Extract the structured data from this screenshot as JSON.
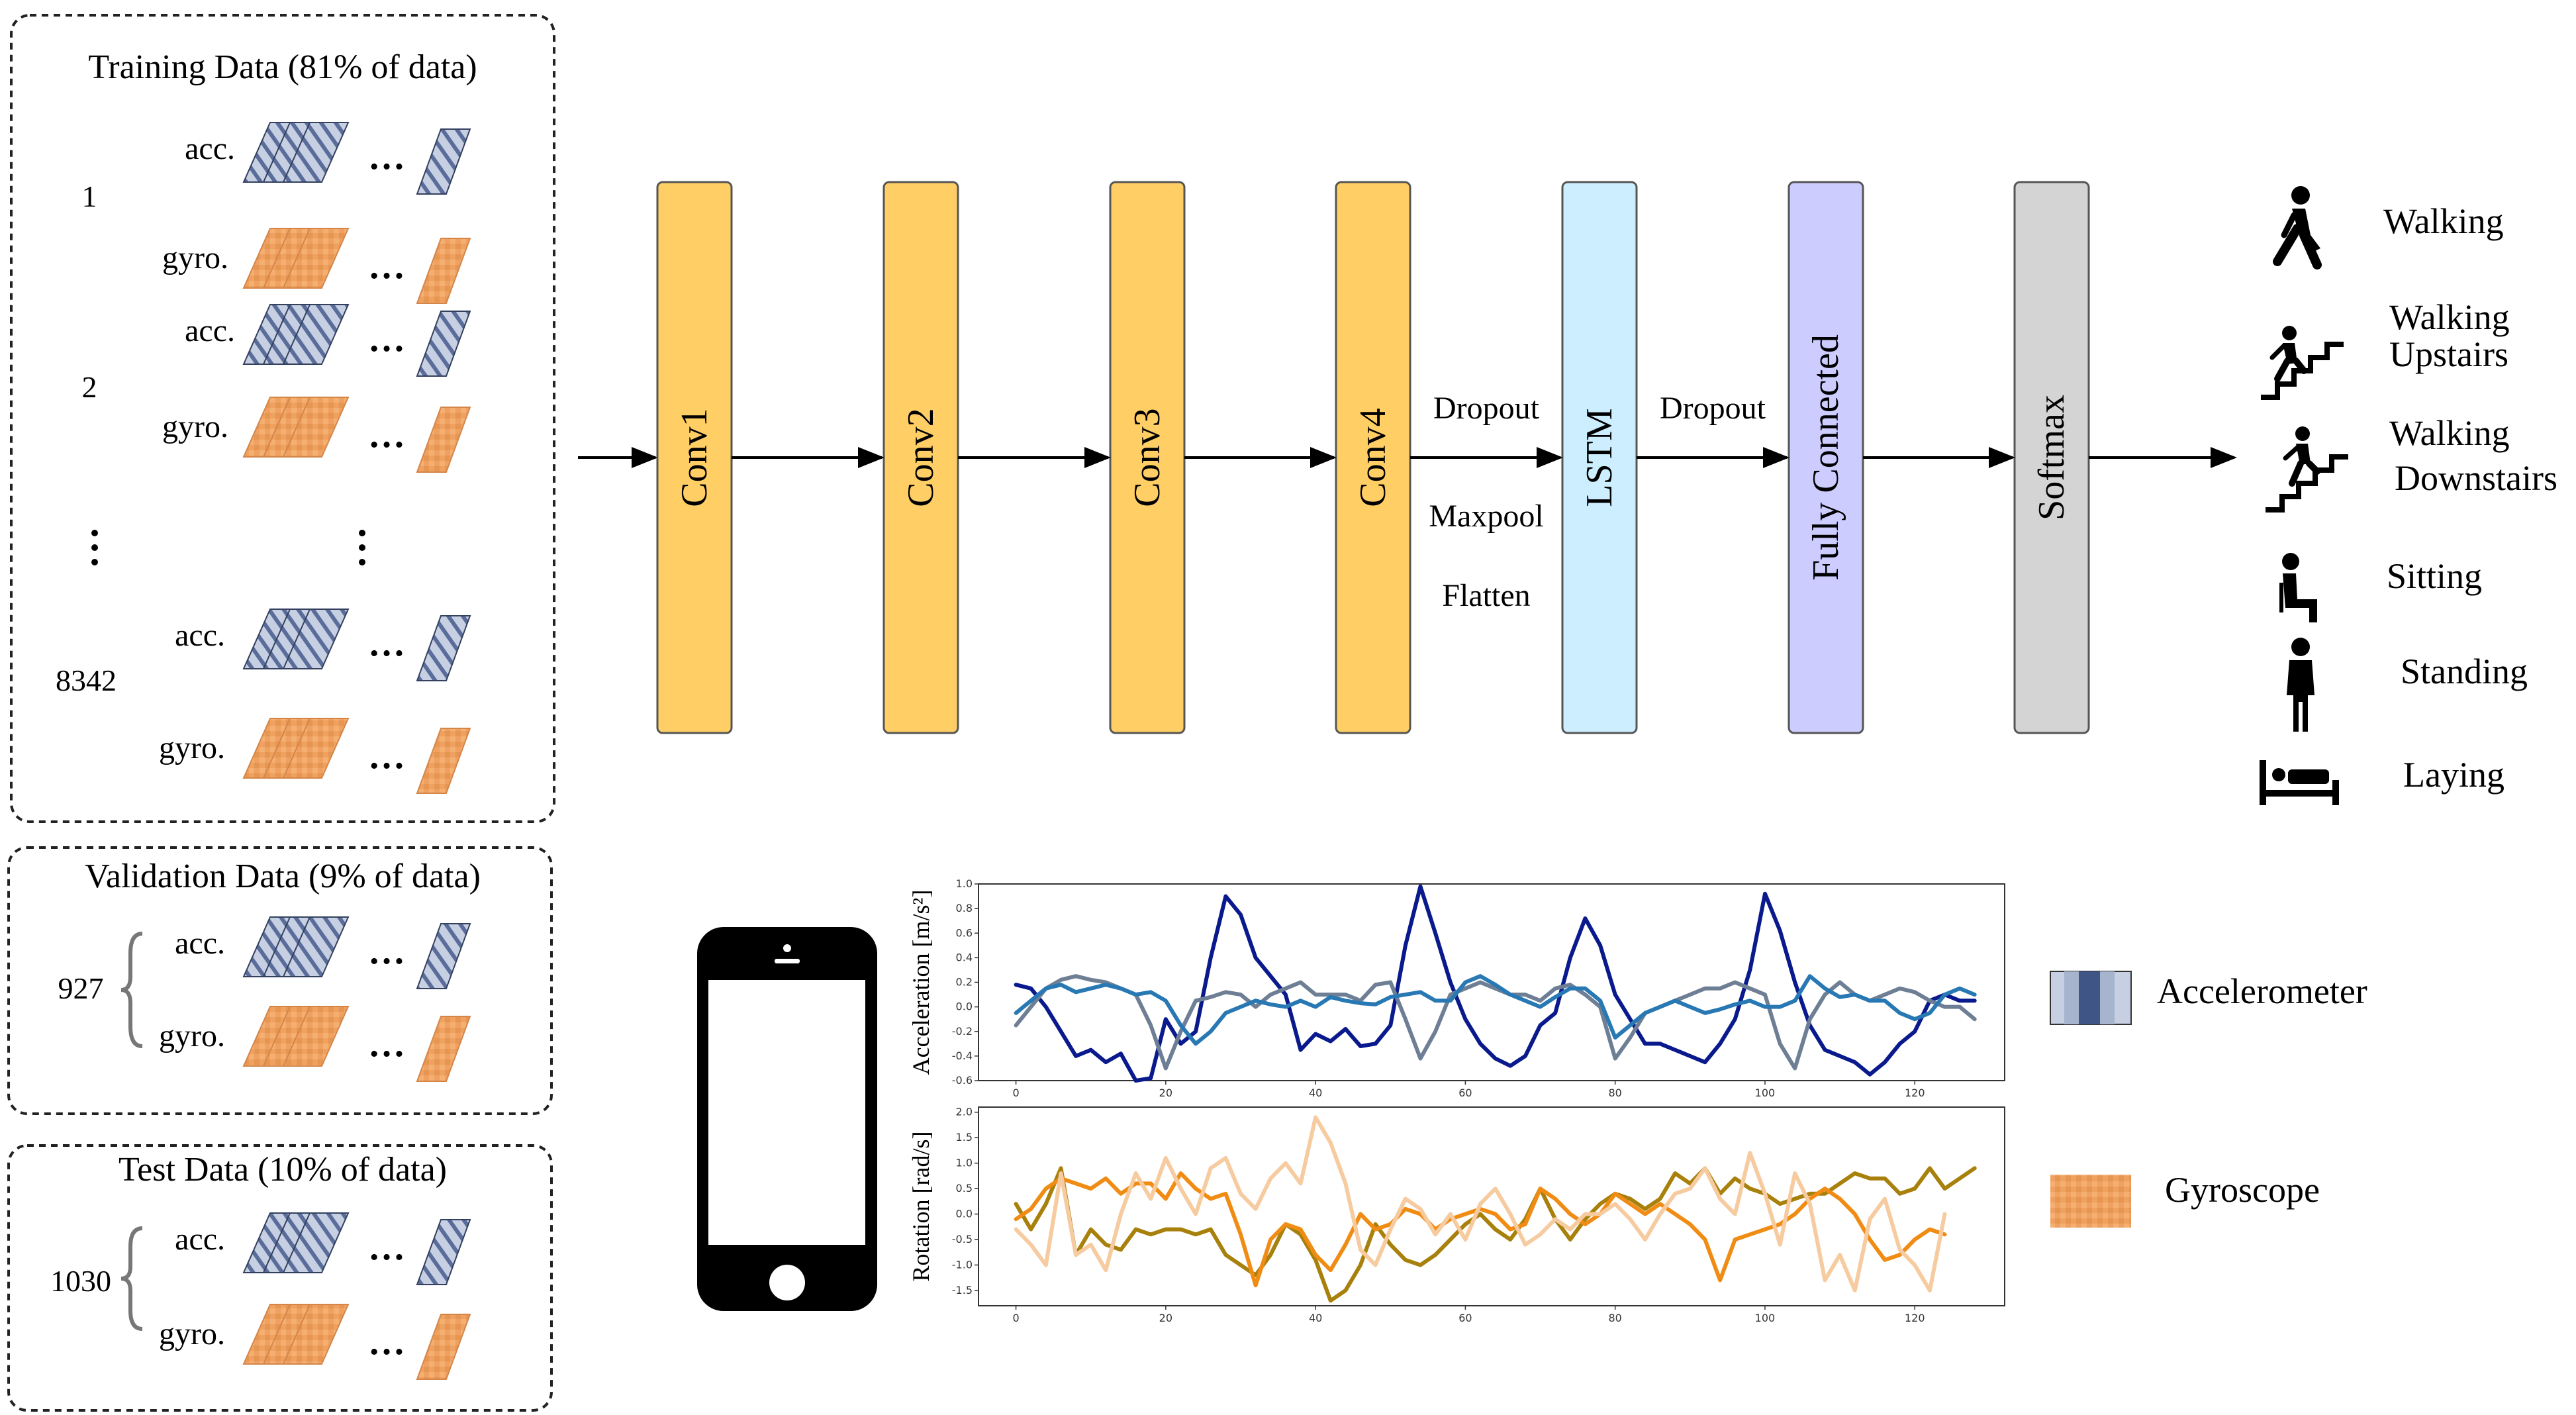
{
  "datasets": [
    {
      "title": "Training Data (81% of data)",
      "samples": [
        "1",
        "2",
        "8342"
      ]
    },
    {
      "title": "Validation Data (9% of data)",
      "samples": [
        "927"
      ]
    },
    {
      "title": "Test Data (10% of data)",
      "samples": [
        "1030"
      ]
    }
  ],
  "sensor_labels": {
    "acc": "acc.",
    "gyro": "gyro.",
    "ellipsis": "…"
  },
  "layers": [
    "Conv1",
    "Conv2",
    "Conv3",
    "Conv4",
    "LSTM",
    "Fully Connected",
    "Softmax"
  ],
  "layer_colors": {
    "conv": "#FFCF66",
    "lstm": "#CCEEFF",
    "fc": "#CCCCFF",
    "softmax": "#D4D4D4"
  },
  "notes_after_conv4": [
    "Dropout",
    "Maxpool",
    "Flatten"
  ],
  "note_after_lstm": "Dropout",
  "classes": [
    {
      "label": "Walking",
      "icon": "walking-icon"
    },
    {
      "label": "Walking Upstairs",
      "line1": "Walking",
      "line2": "Upstairs",
      "icon": "walking-upstairs-icon"
    },
    {
      "label": "Walking Downstairs",
      "line1": "Walking",
      "line2": "Downstairs",
      "icon": "walking-downstairs-icon"
    },
    {
      "label": "Sitting",
      "icon": "sitting-icon"
    },
    {
      "label": "Standing",
      "icon": "standing-icon"
    },
    {
      "label": "Laying",
      "icon": "laying-icon"
    }
  ],
  "legend": [
    {
      "label": "Accelerometer",
      "color": "#5A6D9A"
    },
    {
      "label": "Gyroscope",
      "color": "#F0A060"
    }
  ],
  "chart_data": [
    {
      "type": "line",
      "ylabel": "Acceleration [m/s²]",
      "ylim": [
        -0.6,
        1.0
      ],
      "xlim": [
        -5,
        132
      ],
      "yticks": [
        "1.0",
        "0.8",
        "0.6",
        "0.4",
        "0.2",
        "0.0",
        "-0.2",
        "-0.4",
        "-0.6"
      ],
      "xticks": [
        "0",
        "20",
        "40",
        "60",
        "80",
        "100",
        "120"
      ],
      "x_start": 0,
      "x_step": 2,
      "series": [
        {
          "color": "#0A1A8C",
          "values": [
            0.18,
            0.15,
            0.0,
            -0.2,
            -0.4,
            -0.35,
            -0.45,
            -0.38,
            -0.6,
            -0.58,
            -0.1,
            -0.3,
            -0.2,
            0.4,
            0.9,
            0.75,
            0.4,
            0.25,
            0.1,
            -0.35,
            -0.22,
            -0.28,
            -0.18,
            -0.32,
            -0.3,
            -0.15,
            0.5,
            0.98,
            0.6,
            0.2,
            -0.1,
            -0.3,
            -0.42,
            -0.48,
            -0.4,
            -0.15,
            -0.05,
            0.4,
            0.72,
            0.5,
            0.1,
            -0.1,
            -0.3,
            -0.3,
            -0.35,
            -0.4,
            -0.45,
            -0.3,
            -0.1,
            0.3,
            0.92,
            0.62,
            0.2,
            -0.15,
            -0.35,
            -0.4,
            -0.45,
            -0.55,
            -0.45,
            -0.3,
            -0.2,
            0.05,
            0.1,
            0.05,
            0.05
          ]
        },
        {
          "color": "#6E7F95",
          "values": [
            -0.15,
            0.0,
            0.15,
            0.22,
            0.25,
            0.22,
            0.2,
            0.15,
            0.1,
            -0.15,
            -0.5,
            -0.2,
            0.05,
            0.08,
            0.12,
            0.1,
            0.0,
            0.1,
            0.15,
            0.2,
            0.1,
            0.1,
            0.1,
            0.05,
            0.18,
            0.2,
            -0.1,
            -0.42,
            -0.2,
            0.1,
            0.15,
            0.2,
            0.15,
            0.1,
            0.1,
            0.05,
            0.15,
            0.18,
            0.1,
            0.0,
            -0.42,
            -0.25,
            -0.05,
            0.0,
            0.05,
            0.1,
            0.15,
            0.15,
            0.2,
            0.15,
            0.1,
            -0.3,
            -0.5,
            -0.1,
            0.1,
            0.2,
            0.1,
            0.05,
            0.1,
            0.15,
            0.12,
            0.05,
            0.0,
            0.0,
            -0.1
          ]
        },
        {
          "color": "#2878B4",
          "values": [
            -0.05,
            0.05,
            0.15,
            0.18,
            0.12,
            0.15,
            0.18,
            0.15,
            0.1,
            0.12,
            0.05,
            -0.15,
            -0.3,
            -0.2,
            -0.05,
            0.0,
            0.05,
            0.02,
            0.0,
            0.05,
            0.0,
            0.08,
            0.05,
            0.03,
            0.02,
            0.08,
            0.1,
            0.12,
            0.05,
            0.05,
            0.2,
            0.25,
            0.18,
            0.1,
            0.05,
            0.0,
            0.08,
            0.15,
            0.15,
            0.05,
            -0.25,
            -0.15,
            -0.05,
            0.0,
            0.05,
            0.0,
            -0.05,
            -0.02,
            0.02,
            0.05,
            0.0,
            0.0,
            0.05,
            0.25,
            0.15,
            0.08,
            0.1,
            0.05,
            0.05,
            -0.05,
            -0.1,
            -0.05,
            0.1,
            0.15,
            0.1
          ]
        }
      ]
    },
    {
      "type": "line",
      "ylabel": "Rotation [rad/s]",
      "ylim": [
        -1.8,
        2.1
      ],
      "xlim": [
        -5,
        132
      ],
      "yticks": [
        "2.0",
        "1.5",
        "1.0",
        "0.5",
        "0.0",
        "-0.5",
        "-1.0",
        "-1.5"
      ],
      "xticks": [
        "0",
        "20",
        "40",
        "60",
        "80",
        "100",
        "120"
      ],
      "x_start": 0,
      "x_step": 2,
      "series": [
        {
          "color": "#A8800C",
          "values": [
            0.2,
            -0.3,
            0.2,
            0.9,
            -0.8,
            -0.3,
            -0.6,
            -0.7,
            -0.3,
            -0.4,
            -0.3,
            -0.3,
            -0.4,
            -0.3,
            -0.8,
            -1.0,
            -1.2,
            -0.8,
            -0.2,
            -0.4,
            -0.9,
            -1.7,
            -1.5,
            -1.0,
            -0.2,
            -0.6,
            -0.9,
            -1.0,
            -0.8,
            -0.5,
            -0.2,
            0.0,
            -0.3,
            -0.5,
            -0.1,
            0.5,
            -0.1,
            -0.5,
            -0.1,
            0.2,
            0.4,
            0.3,
            0.1,
            0.3,
            0.8,
            0.6,
            0.9,
            0.4,
            0.7,
            0.5,
            0.4,
            0.2,
            0.3,
            0.4,
            0.4,
            0.6,
            0.8,
            0.7,
            0.7,
            0.4,
            0.5,
            0.9,
            0.5,
            0.7,
            0.9
          ]
        },
        {
          "color": "#F08C14",
          "values": [
            -0.1,
            0.1,
            0.5,
            0.7,
            0.6,
            0.5,
            0.7,
            0.4,
            0.6,
            0.6,
            0.3,
            0.8,
            0.5,
            0.3,
            0.4,
            -0.4,
            -1.4,
            -0.5,
            -0.2,
            -0.3,
            -0.8,
            -1.1,
            -0.6,
            0.0,
            -0.3,
            -0.2,
            0.1,
            0.0,
            -0.3,
            -0.1,
            0.0,
            0.1,
            0.0,
            -0.3,
            -0.2,
            0.5,
            0.3,
            0.0,
            -0.2,
            0.0,
            0.4,
            0.2,
            0.0,
            0.2,
            0.0,
            -0.2,
            -0.5,
            -1.3,
            -0.5,
            -0.4,
            -0.3,
            -0.2,
            0.0,
            0.3,
            0.5,
            0.3,
            0.0,
            -0.5,
            -0.9,
            -0.8,
            -0.5,
            -0.3,
            -0.4
          ]
        },
        {
          "color": "#F7CBA0",
          "values": [
            -0.3,
            -0.6,
            -1.0,
            0.8,
            -0.8,
            -0.6,
            -1.1,
            0.0,
            0.8,
            0.3,
            1.1,
            0.5,
            0.0,
            0.9,
            1.1,
            0.4,
            0.1,
            0.7,
            1.0,
            0.6,
            1.9,
            1.4,
            0.6,
            -0.7,
            -1.0,
            -0.3,
            0.3,
            0.1,
            -0.4,
            0.0,
            -0.5,
            0.2,
            0.5,
            0.0,
            -0.6,
            -0.4,
            -0.1,
            -0.3,
            0.0,
            0.0,
            0.2,
            -0.1,
            -0.5,
            0.0,
            0.4,
            0.5,
            0.9,
            0.3,
            0.0,
            1.2,
            0.4,
            -0.6,
            0.8,
            0.2,
            -1.3,
            -0.8,
            -1.5,
            -0.1,
            0.3,
            -0.7,
            -1.0,
            -1.5,
            0.0
          ]
        }
      ]
    }
  ]
}
